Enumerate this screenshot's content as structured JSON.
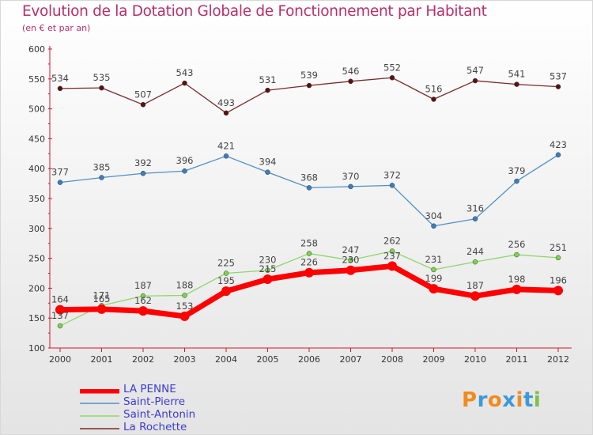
{
  "title": "Evolution de la Dotation Globale de Fonctionnement par Habitant",
  "subtitle": "(en € et par an)",
  "logo": {
    "text": "Proxiti"
  },
  "colors": {
    "title": "#b8306a",
    "axis": "#d11a2a",
    "tick_text": "#333333",
    "legend_text": "#3b3bd6"
  },
  "chart_data": {
    "type": "line",
    "title": "Evolution de la Dotation Globale de Fonctionnement par Habitant",
    "subtitle": "(en € et par an)",
    "x": [
      "2000",
      "2001",
      "2002",
      "2003",
      "2004",
      "2005",
      "2006",
      "2007",
      "2008",
      "2009",
      "2010",
      "2011",
      "2012"
    ],
    "ylim": [
      100,
      600
    ],
    "yticks": [
      100,
      150,
      200,
      250,
      300,
      350,
      400,
      450,
      500,
      550,
      600
    ],
    "grid": false,
    "legend": "bottom-left",
    "series": [
      {
        "name": "La Rochette",
        "values": [
          534,
          535,
          507,
          543,
          493,
          531,
          539,
          546,
          552,
          516,
          547,
          541,
          537
        ],
        "color": "#7a2a2a",
        "marker": "#5c1010"
      },
      {
        "name": "Saint-Pierre",
        "values": [
          377,
          385,
          392,
          396,
          421,
          394,
          368,
          370,
          372,
          304,
          316,
          379,
          423
        ],
        "color": "#4f90c4",
        "marker": "#3a7fc0"
      },
      {
        "name": "Saint-Antonin",
        "values": [
          137,
          171,
          187,
          188,
          225,
          230,
          258,
          247,
          262,
          231,
          244,
          256,
          251
        ],
        "color": "#8fd66b",
        "marker": "#7cd64a"
      },
      {
        "name": "LA PENNE",
        "values": [
          164,
          165,
          162,
          153,
          195,
          215,
          226,
          230,
          237,
          199,
          187,
          198,
          196
        ],
        "color": "#ff0000",
        "marker": "#ff0000"
      }
    ]
  }
}
